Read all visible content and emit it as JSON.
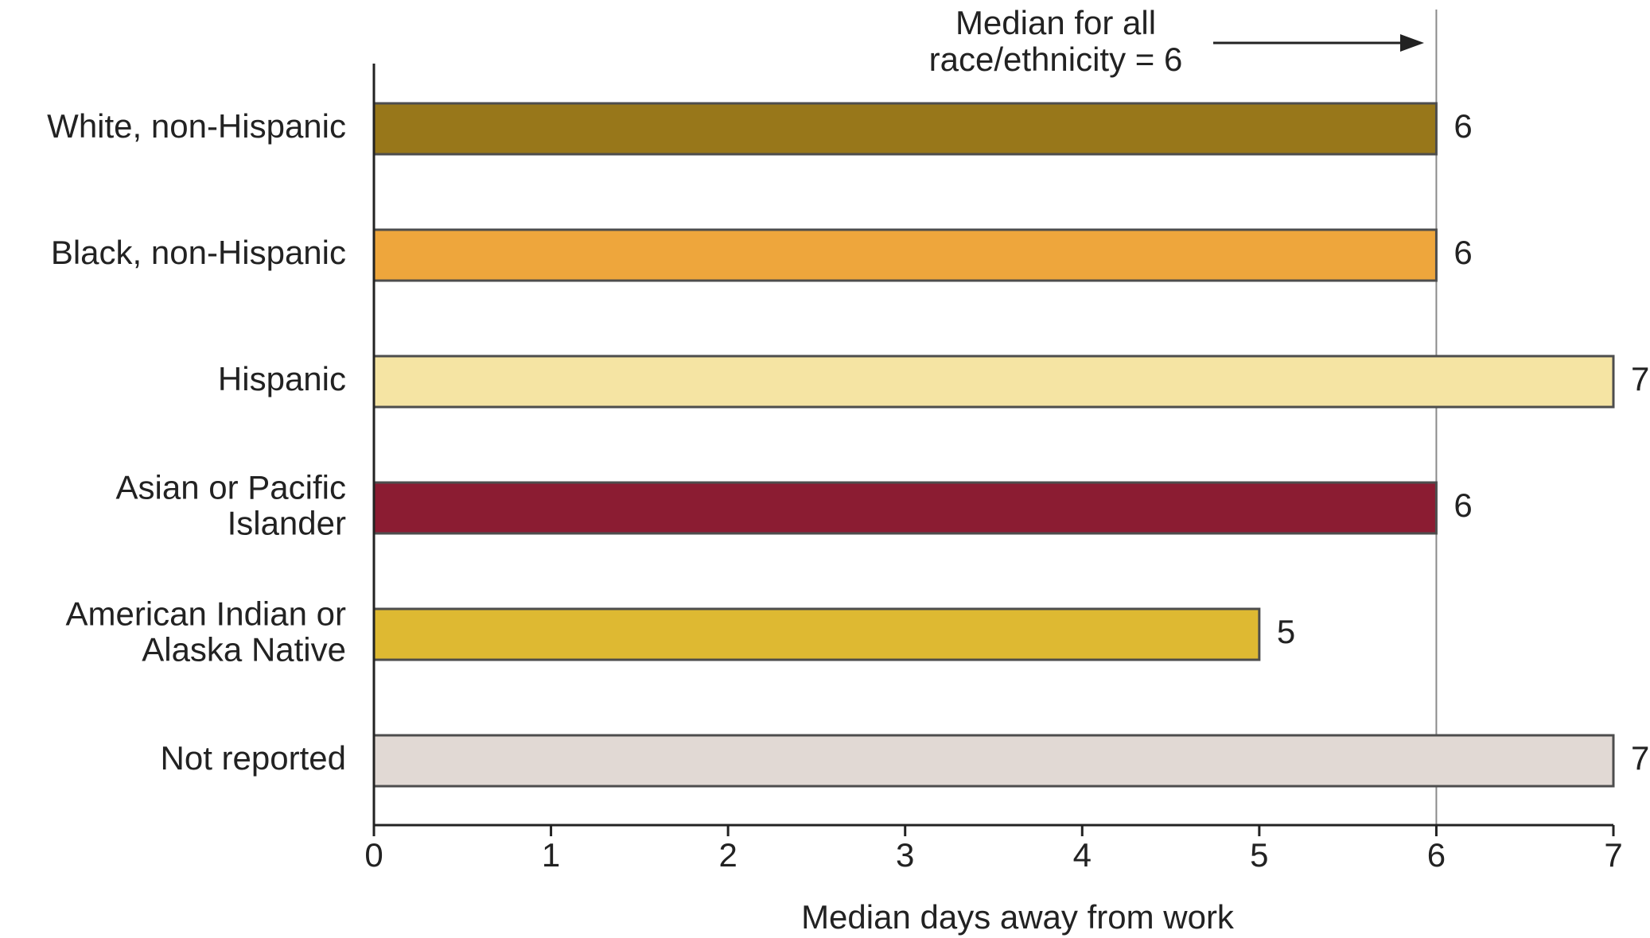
{
  "chart_data": {
    "type": "bar",
    "orientation": "horizontal",
    "categories": [
      "White, non-Hispanic",
      "Black, non-Hispanic",
      "Hispanic",
      "Asian or Pacific Islander",
      "American Indian or Alaska Native",
      "Not reported"
    ],
    "category_lines": [
      [
        "White, non-Hispanic"
      ],
      [
        "Black, non-Hispanic"
      ],
      [
        "Hispanic"
      ],
      [
        "Asian or Pacific",
        "Islander"
      ],
      [
        "American Indian or",
        "Alaska Native"
      ],
      [
        "Not reported"
      ]
    ],
    "values": [
      6,
      6,
      7,
      6,
      5,
      7
    ],
    "value_labels": [
      "6",
      "6",
      "7",
      "6",
      "5",
      "7"
    ],
    "colors": [
      "#98771a",
      "#eea63c",
      "#f5e4a3",
      "#8b1c32",
      "#deb932",
      "#e1d9d4"
    ],
    "xlabel": "Median days away from work",
    "xlim": [
      0,
      7
    ],
    "xticks": [
      0,
      1,
      2,
      3,
      4,
      5,
      6,
      7
    ],
    "xtick_labels": [
      "0",
      "1",
      "2",
      "3",
      "4",
      "5",
      "6",
      "7"
    ],
    "grid": false,
    "reference_line": {
      "value": 6,
      "label_lines": [
        "Median for all",
        "race/ethnicity = 6"
      ]
    }
  }
}
